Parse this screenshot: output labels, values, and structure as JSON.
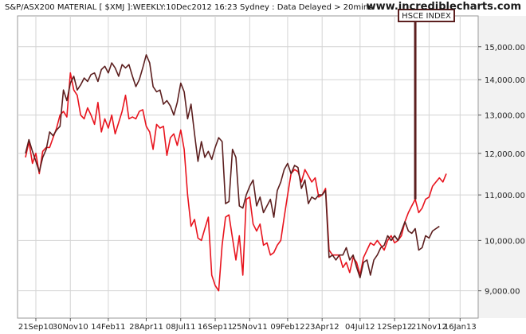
{
  "chart_data": {
    "type": "line",
    "title": "S&P/ASX200 MATERIAL [ $XMJ ]:WEEKLY:10Dec2012 16:23 Sydney : Data Delayed > 20mins",
    "watermark": "www.incrediblecharts.com",
    "annotation": "HSCE INDEX",
    "y_scale": "log",
    "ylim": [
      8500,
      16000
    ],
    "y_ticks": [
      {
        "value": 9000,
        "label": "9,000.00"
      },
      {
        "value": 10000,
        "label": "10,000.00"
      },
      {
        "value": 11000,
        "label": "11,000.00"
      },
      {
        "value": 12000,
        "label": "12,000.00"
      },
      {
        "value": 13000,
        "label": "13,000.00"
      },
      {
        "value": 14000,
        "label": "14,000.00"
      },
      {
        "value": 15000,
        "label": "15,000.00"
      }
    ],
    "x_ticks": [
      "21Sep10",
      "30Nov10",
      "14Feb11",
      "28Apr11",
      "08Jul11",
      "16Sep11",
      "25Nov11",
      "09Feb12",
      "23Apr12",
      "04Jul12",
      "12Sep12",
      "21Nov12",
      "16Jan13"
    ],
    "x_tick_index": [
      3,
      13,
      24,
      35,
      45,
      55,
      65,
      76,
      86,
      97,
      107,
      117,
      126
    ],
    "grid": true,
    "colors": {
      "hsce": "#e8141e",
      "xmj": "#5c1f1f",
      "grid": "#d4d4d4",
      "axis_bg": "#f2f2f2",
      "annotation_border": "#5c1f1f"
    },
    "series": [
      {
        "name": "",
        "color": "#5c1f1f",
        "values": [
          12000,
          12350,
          12050,
          11800,
          11550,
          11900,
          12100,
          12550,
          12450,
          12600,
          12700,
          13700,
          13400,
          13900,
          14100,
          13700,
          13850,
          14050,
          13950,
          14150,
          14200,
          13950,
          14300,
          14400,
          14200,
          14500,
          14350,
          14100,
          14450,
          14350,
          14450,
          14100,
          13800,
          14000,
          14350,
          14750,
          14500,
          13800,
          13650,
          13700,
          13300,
          13400,
          13250,
          13000,
          13350,
          13900,
          13650,
          12900,
          13300,
          12500,
          11800,
          12300,
          11900,
          12050,
          11850,
          12150,
          12400,
          12300,
          10800,
          10850,
          12100,
          11900,
          10750,
          10700,
          11000,
          11200,
          11350,
          10750,
          10950,
          10600,
          10750,
          10900,
          10500,
          11100,
          11300,
          11600,
          11750,
          11500,
          11700,
          11650,
          11150,
          11350,
          10800,
          10950,
          10900,
          11000,
          11000,
          11100,
          9650,
          9700,
          9600,
          9700,
          9700,
          9850,
          9600,
          9700,
          9450,
          9250,
          9550,
          9600,
          9300,
          9600,
          9700,
          9850,
          9900,
          10100,
          10000,
          10100,
          10000,
          10200,
          10400,
          10200,
          10150,
          10250,
          9800,
          9850,
          10100,
          10050,
          10200,
          10250,
          10300
        ]
      },
      {
        "name": "",
        "color": "#e8141e",
        "values": [
          11900,
          12300,
          11750,
          12000,
          11500,
          12050,
          12150,
          12150,
          12400,
          12650,
          13000,
          13100,
          12950,
          14200,
          13700,
          13550,
          13000,
          12900,
          13200,
          13000,
          12750,
          13350,
          12550,
          12900,
          12650,
          13000,
          12500,
          12800,
          13100,
          13550,
          12900,
          12950,
          12900,
          13100,
          13150,
          12700,
          12550,
          12100,
          12750,
          12650,
          12700,
          11950,
          12400,
          12500,
          12200,
          12600,
          12100,
          11000,
          10300,
          10450,
          10050,
          10000,
          10250,
          10500,
          9300,
          9100,
          9000,
          9900,
          10500,
          10550,
          10050,
          9600,
          10100,
          9300,
          10900,
          10950,
          10350,
          10200,
          10350,
          9900,
          9950,
          9700,
          9750,
          9900,
          10000,
          10500,
          11000,
          11500,
          11600,
          11550,
          11300,
          11600,
          11450,
          11300,
          11400,
          10950,
          11000,
          11150,
          9800,
          9700,
          9700,
          9700,
          9450,
          9550,
          9350,
          9650,
          9550,
          9300,
          9650,
          9800,
          9950,
          9900,
          10000,
          9900,
          9800,
          10000,
          10100,
          9950,
          10000,
          10100,
          10400,
          10600,
          10750,
          10900,
          10600,
          10700,
          10900,
          10950,
          11200,
          11300,
          11400,
          11300,
          11500
        ]
      }
    ]
  }
}
